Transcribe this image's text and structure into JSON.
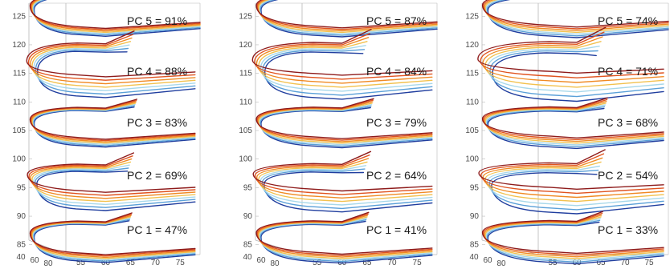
{
  "chart_data": [
    {
      "type": "line",
      "y_ticks": [
        85,
        90,
        95,
        100,
        105,
        110,
        115,
        120,
        125
      ],
      "x_ticks": [
        55,
        60,
        65,
        70,
        75
      ],
      "depth_ticks": [
        40,
        60,
        80
      ],
      "annotations": [
        "PC 5 = 91%",
        "PC 4 = 88%",
        "PC 3 = 83%",
        "PC 2 = 69%",
        "PC 1 = 47%"
      ]
    },
    {
      "type": "line",
      "y_ticks": [
        85,
        90,
        95,
        100,
        105,
        110,
        115,
        120,
        125
      ],
      "x_ticks": [
        55,
        60,
        65,
        70,
        75
      ],
      "depth_ticks": [
        40,
        60,
        80
      ],
      "annotations": [
        "PC 5 = 87%",
        "PC 4 = 84%",
        "PC 3 = 79%",
        "PC 2 = 64%",
        "PC 1 = 41%"
      ]
    },
    {
      "type": "line",
      "y_ticks": [
        85,
        90,
        95,
        100,
        105,
        110,
        115,
        120,
        125
      ],
      "x_ticks": [
        55,
        60,
        65,
        70,
        75
      ],
      "depth_ticks": [
        40,
        60,
        80
      ],
      "annotations": [
        "PC 5 = 74%",
        "PC 4 = 71%",
        "PC 3 = 68%",
        "PC 2 = 54%",
        "PC 1 = 33%"
      ]
    }
  ],
  "colors": {
    "series": [
      "#1f3d9e",
      "#5aa0d8",
      "#a8d8ea",
      "#f2c14e",
      "#f08a24",
      "#e0531f",
      "#8e1b1b"
    ],
    "frame": "#b8b8b8",
    "ticks": "#4a4a4a"
  }
}
